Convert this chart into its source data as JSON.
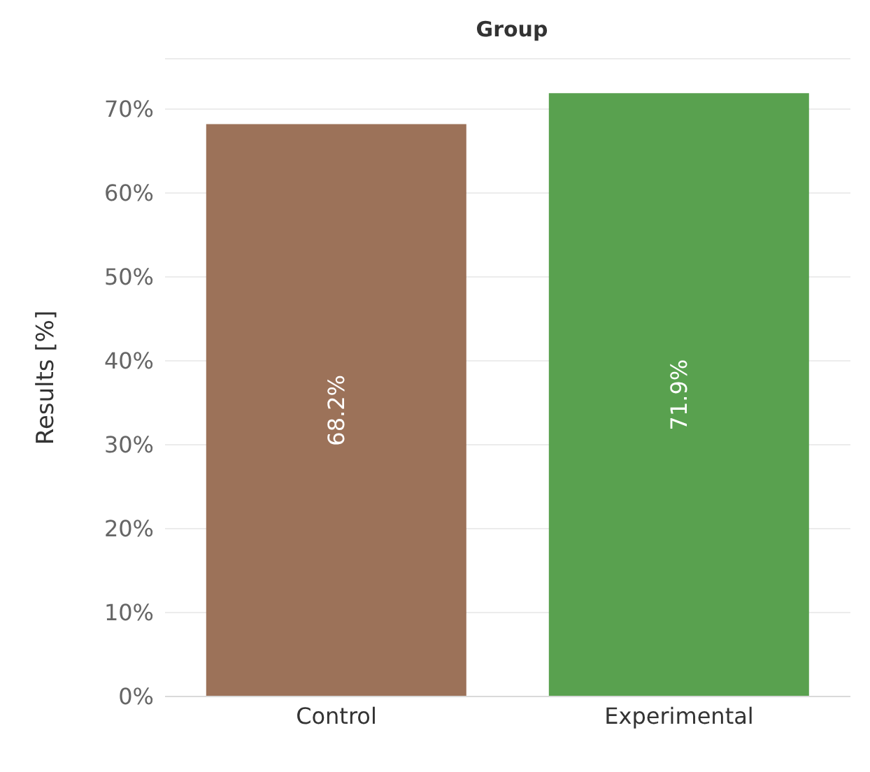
{
  "chart_data": {
    "type": "bar",
    "title": "Group",
    "ylabel": "Results [%]",
    "categories": [
      "Control",
      "Experimental"
    ],
    "values": [
      68.2,
      71.9
    ],
    "colors": [
      "#9c7259",
      "#59a14f"
    ],
    "value_labels": [
      "68.2%",
      "71.9%"
    ],
    "ylim": [
      0,
      76
    ],
    "yticks": [
      {
        "value": 0,
        "label": "0%"
      },
      {
        "value": 10,
        "label": "10%"
      },
      {
        "value": 20,
        "label": "20%"
      },
      {
        "value": 30,
        "label": "30%"
      },
      {
        "value": 40,
        "label": "40%"
      },
      {
        "value": 50,
        "label": "50%"
      },
      {
        "value": 60,
        "label": "60%"
      },
      {
        "value": 70,
        "label": "70%"
      }
    ],
    "grid": "y"
  }
}
